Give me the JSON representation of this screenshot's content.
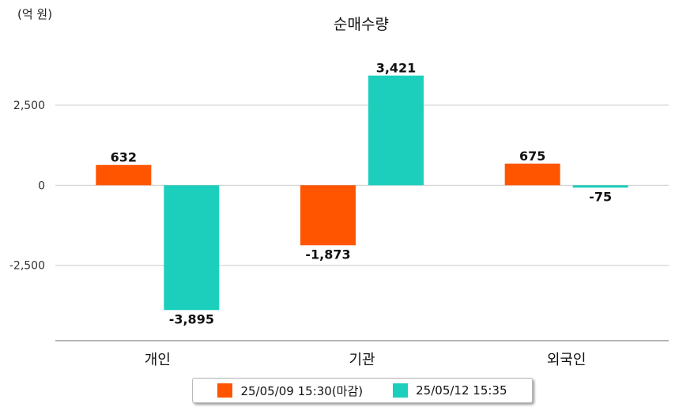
{
  "colors": {
    "series1": "#ff5500",
    "series2": "#1ccfbd",
    "grid": "#cccccc",
    "axis": "#888888"
  },
  "chart_data": {
    "type": "bar",
    "title": "순매수량",
    "unit_label": "(억 원)",
    "categories": [
      "개인",
      "기관",
      "외국인"
    ],
    "series": [
      {
        "name": "25/05/09 15:30(마감)",
        "values": [
          632,
          -1873,
          675
        ],
        "labels": [
          "632",
          "-1,873",
          "675"
        ]
      },
      {
        "name": "25/05/12 15:35",
        "values": [
          -3895,
          3421,
          -75
        ],
        "labels": [
          "-3,895",
          "3,421",
          "-75"
        ]
      }
    ],
    "yticks": [
      2500,
      0,
      -2500
    ],
    "ytick_labels": [
      "2,500",
      "0",
      "-2,500"
    ],
    "ylim": [
      -4850,
      4300
    ],
    "grid": true,
    "legend_position": "bottom"
  }
}
